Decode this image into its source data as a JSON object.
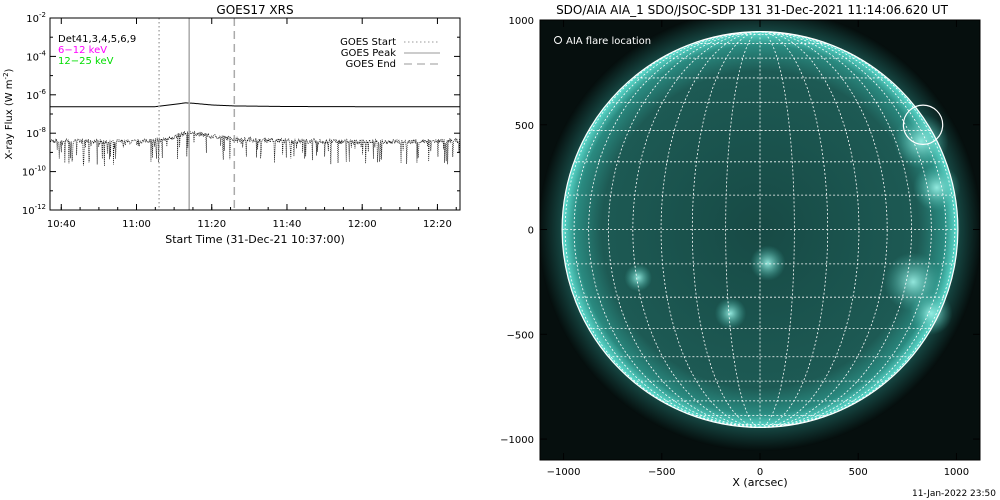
{
  "footer_timestamp": "11-Jan-2022 23:50",
  "chart_data": [
    {
      "type": "line",
      "title": "GOES17 XRS",
      "xlabel": "Start Time (31-Dec-21 10:37:00)",
      "ylabel_main": "X-ray Flux (W m",
      "ylabel_sup": "-2",
      "ylabel_close": ")",
      "log_y": true,
      "ylim_exp": [
        -12,
        -2
      ],
      "y_ticks": [
        {
          "exp": -12,
          "base": "10",
          "sup": "-12"
        },
        {
          "exp": -10,
          "base": "10",
          "sup": "-10"
        },
        {
          "exp": -8,
          "base": "10",
          "sup": "-8"
        },
        {
          "exp": -6,
          "base": "10",
          "sup": "-6"
        },
        {
          "exp": -4,
          "base": "10",
          "sup": "-4"
        },
        {
          "exp": -2,
          "base": "10",
          "sup": "-2"
        }
      ],
      "xlim_time": [
        "10:37",
        "12:26"
      ],
      "x_ticks": [
        "10:40",
        "11:00",
        "11:20",
        "11:40",
        "12:00",
        "12:20"
      ],
      "text_legend": [
        {
          "label": "Det41,3,4,5,6,9",
          "color": "#000000"
        },
        {
          "label": "6−12 keV",
          "color": "#ff00ff"
        },
        {
          "label": "12−25 keV",
          "color": "#00dd00"
        }
      ],
      "marker_legend": [
        {
          "label": "GOES Start",
          "style": "dotted"
        },
        {
          "label": "GOES Peak",
          "style": "solid"
        },
        {
          "label": "GOES End",
          "style": "dashed"
        }
      ],
      "markers": [
        {
          "name": "GOES Start",
          "time": "11:06",
          "color": "#aaaaaa",
          "style": "dotted"
        },
        {
          "name": "GOES Peak",
          "time": "11:14",
          "color": "#aaaaaa",
          "style": "solid"
        },
        {
          "name": "GOES End",
          "time": "11:26",
          "color": "#aaaaaa",
          "style": "dashed"
        }
      ],
      "series": [
        {
          "channel": "long",
          "x": [
            "10:37",
            "10:50",
            "11:05",
            "11:10",
            "11:13",
            "11:15",
            "11:20",
            "11:26",
            "11:40",
            "12:00",
            "12:26"
          ],
          "log_values": [
            -6.62,
            -6.62,
            -6.62,
            -6.5,
            -6.42,
            -6.44,
            -6.53,
            -6.58,
            -6.61,
            -6.62,
            -6.62
          ]
        },
        {
          "channel": "short",
          "noisy": true,
          "x": [
            "10:37",
            "11:00",
            "11:08",
            "11:12",
            "11:14",
            "11:18",
            "11:26",
            "11:40",
            "12:00",
            "12:26"
          ],
          "log_values": [
            -8.4,
            -8.45,
            -8.3,
            -8.05,
            -7.95,
            -8.1,
            -8.3,
            -8.4,
            -8.45,
            -8.4
          ]
        }
      ]
    },
    {
      "type": "image",
      "title": "SDO/AIA AIA_1 SDO/JSOC-SDP 131 31-Dec-2021 11:14:06.620 UT",
      "xlabel": "X (arcsec)",
      "xlim": [
        -1120,
        1120
      ],
      "ylim": [
        -1100,
        1000
      ],
      "x_ticks": [
        -1000,
        -500,
        0,
        500,
        1000
      ],
      "y_ticks": [
        -1000,
        -500,
        0,
        500,
        1000
      ],
      "tick_labels_x": [
        "−1000",
        "−500",
        "0",
        "500",
        "1000"
      ],
      "tick_labels_y": [
        "−1000",
        "−500",
        "0",
        "500",
        "1000"
      ],
      "legend": "O AIA flare location",
      "disk_radius": 975,
      "disk_color": "#1f5c56",
      "limb_color": "#4ad4c4",
      "flare_location": {
        "x": 830,
        "y": 500,
        "radius": 100
      },
      "grid_lines": true
    }
  ]
}
